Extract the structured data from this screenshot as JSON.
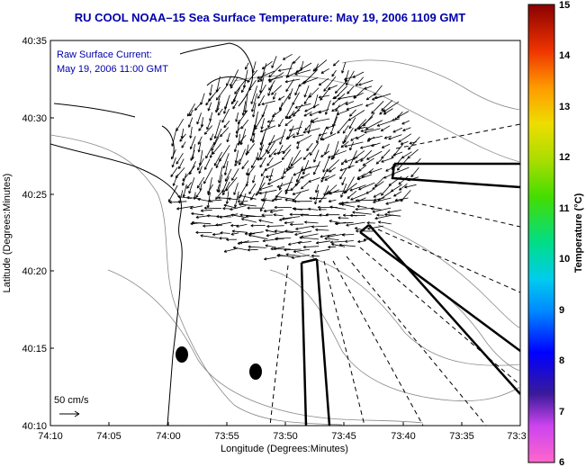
{
  "title": "RU COOL  NOAA–15  Sea Surface Temperature:  May 19, 2006 1109 GMT",
  "annotation": {
    "line1": "Raw Surface Current:",
    "line2": "May 19, 2006 11:00 GMT"
  },
  "scale_label": "50 cm/s",
  "axes": {
    "xlabel": "Longitude (Degrees:Minutes)",
    "ylabel": "Latitude (Degrees:Minutes)",
    "xticks": [
      "74:10",
      "74:05",
      "74:00",
      "73:55",
      "73:50",
      "73:45",
      "73:40",
      "73:35",
      "73:3"
    ],
    "yticks": [
      "40:35",
      "40:30",
      "40:25",
      "40:20",
      "40:15",
      "40:10"
    ]
  },
  "colorbar": {
    "label": "Temperature (°C)",
    "ticks": [
      "15",
      "14",
      "13",
      "12",
      "11",
      "10",
      "9",
      "8",
      "7",
      "6"
    ],
    "range": [
      6,
      15
    ]
  },
  "colors": {
    "title": "#0000aa",
    "annotation": "#0000aa"
  }
}
